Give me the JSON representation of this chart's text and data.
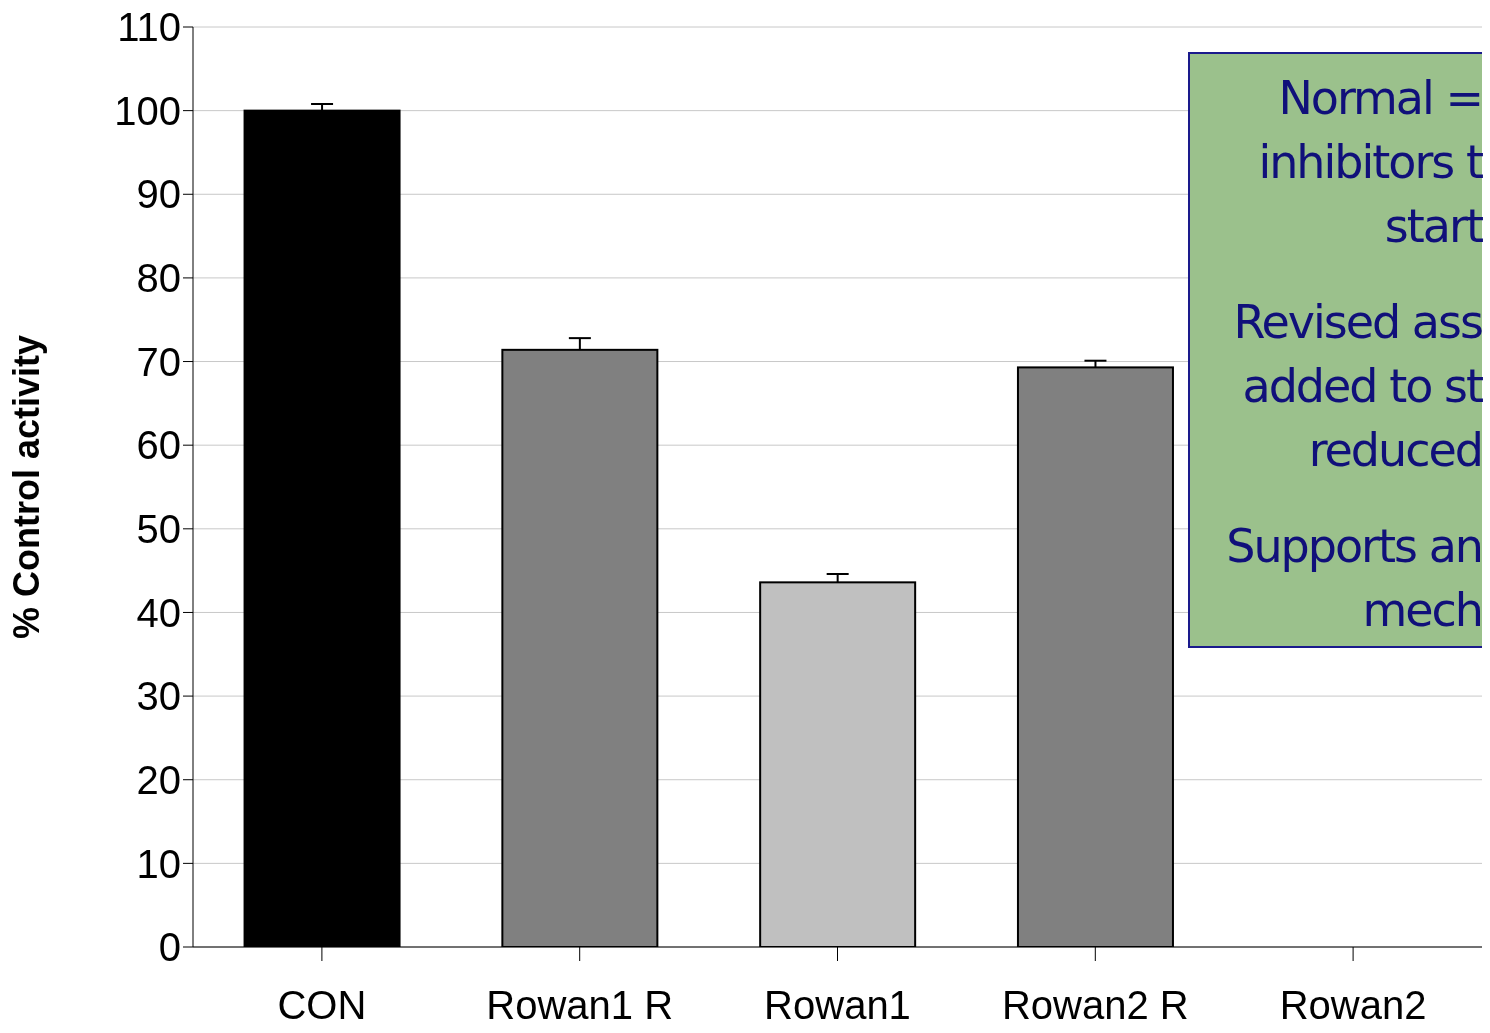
{
  "chart_data": {
    "type": "bar",
    "ylabel": "% Control activity",
    "categories": [
      "CON",
      "Rowan1 R",
      "Rowan1",
      "Rowan2  R",
      "Rowan2"
    ],
    "values": [
      100,
      71.4,
      43.6,
      69.3,
      null
    ],
    "colors": [
      "#000000",
      "#808080",
      "#c0c0c0",
      "#808080",
      "#c0c0c0"
    ],
    "errors": [
      [
        100,
        100.8
      ],
      [
        71.4,
        72.8
      ],
      [
        43.6,
        44.6
      ],
      [
        69.3,
        70.1
      ],
      null
    ],
    "ylim": [
      0,
      110
    ],
    "yticks": [
      0,
      10,
      20,
      30,
      40,
      50,
      60,
      70,
      80,
      90,
      100,
      110
    ],
    "grid": "y",
    "annotations": [
      "Normal =\ninhibitors t\nstart",
      "Revised ass\nadded to st\nreduced",
      "Supports an\nmech"
    ]
  }
}
